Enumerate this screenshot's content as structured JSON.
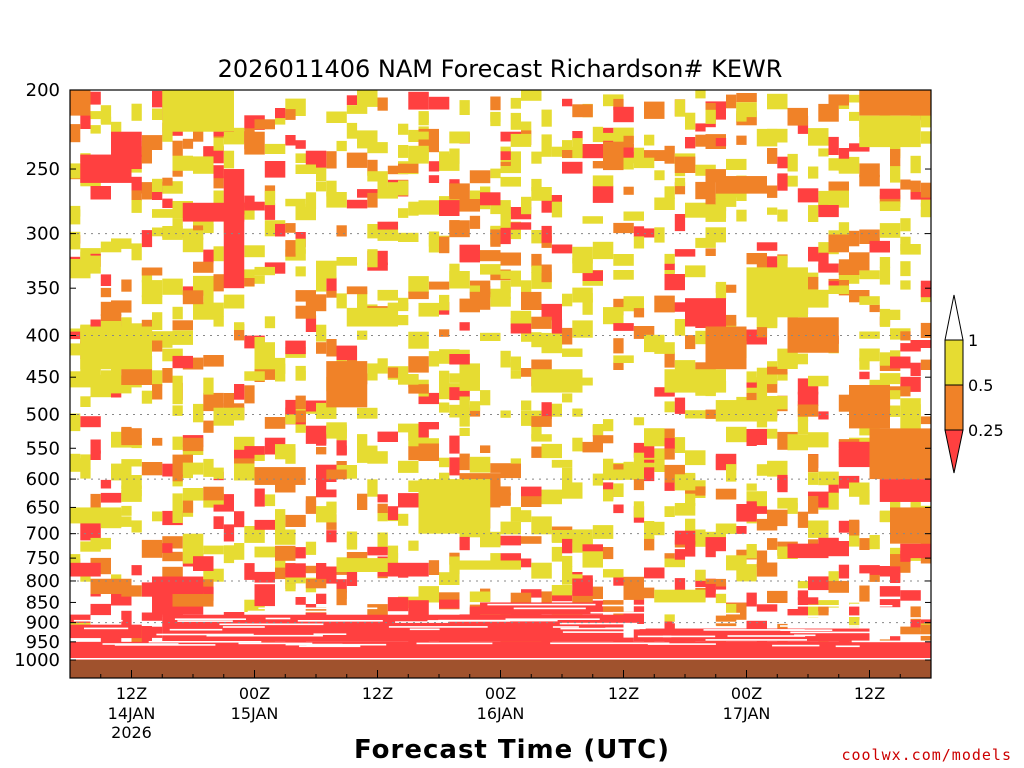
{
  "chart_data": {
    "type": "heatmap",
    "title": "2026011406 NAM Forecast Richardson# KEWR",
    "xlabel": "Forecast Time (UTC)",
    "ylabel": "",
    "credit": "coolwx.com/models",
    "y_axis": {
      "scale": "log-pressure",
      "unit": "hPa",
      "range": [
        1000,
        200
      ],
      "ticks": [
        "200",
        "250",
        "300",
        "350",
        "400",
        "450",
        "500",
        "550",
        "600",
        "650",
        "700",
        "750",
        "800",
        "850",
        "900",
        "950",
        "1000"
      ],
      "dotted_gridlines": [
        300,
        400,
        500,
        600,
        700,
        800,
        900
      ]
    },
    "x_axis": {
      "range_hours": [
        0,
        84
      ],
      "ticks": [
        {
          "hour": 6,
          "label": "12Z",
          "date": "14JAN",
          "year": "2026"
        },
        {
          "hour": 18,
          "label": "00Z",
          "date": "15JAN",
          "year": ""
        },
        {
          "hour": 30,
          "label": "12Z",
          "date": "",
          "year": ""
        },
        {
          "hour": 42,
          "label": "00Z",
          "date": "16JAN",
          "year": ""
        },
        {
          "hour": 54,
          "label": "12Z",
          "date": "",
          "year": ""
        },
        {
          "hour": 66,
          "label": "00Z",
          "date": "17JAN",
          "year": ""
        },
        {
          "hour": 78,
          "label": "12Z",
          "date": "",
          "year": ""
        }
      ]
    },
    "legend": {
      "placement": "right",
      "classes": [
        {
          "range": "< 0.25",
          "color": "#ff4040"
        },
        {
          "range": "0.25 - 0.5",
          "color": "#f08228"
        },
        {
          "range": "0.5 - 1",
          "color": "#e6dc32"
        },
        {
          "range": "> 1",
          "color": "#ffffff"
        }
      ],
      "labels": [
        "1",
        "0.5",
        "0.25"
      ]
    },
    "below_ground_color": "#a0522d",
    "regions": [
      {
        "class": "lt_0.25",
        "h0": 0,
        "h1": 84,
        "p0": 1000,
        "p1": 950
      },
      {
        "class": "lt_0.25",
        "h0": 9,
        "h1": 54,
        "p0": 950,
        "p1": 880
      },
      {
        "class": "lt_0.25",
        "h0": 40,
        "h1": 52,
        "p0": 880,
        "p1": 850
      },
      {
        "class": "lt_0.25",
        "h0": 55,
        "h1": 78,
        "p0": 950,
        "p1": 915
      },
      {
        "class": "lt_0.25",
        "h0": 8,
        "h1": 13,
        "p0": 880,
        "p1": 790
      },
      {
        "class": "lt_0.25",
        "h0": 0,
        "h1": 7,
        "p0": 940,
        "p1": 905
      },
      {
        "class": "lt_0.25",
        "h0": 30,
        "h1": 35,
        "p0": 790,
        "p1": 760
      },
      {
        "class": "lt_0.25",
        "h0": 1,
        "h1": 6,
        "p0": 240,
        "p1": 260
      },
      {
        "class": "lt_0.25",
        "h0": 4,
        "h1": 7,
        "p0": 225,
        "p1": 250
      },
      {
        "class": "lt_0.25",
        "h0": 11,
        "h1": 17,
        "p0": 275,
        "p1": 290
      },
      {
        "class": "lt_0.25",
        "h0": 15,
        "h1": 17,
        "p0": 250,
        "p1": 350
      },
      {
        "class": "lt_0.25",
        "h0": 60,
        "h1": 64,
        "p0": 360,
        "p1": 390
      },
      {
        "class": "lt_0.25",
        "h0": 70,
        "h1": 74,
        "p0": 720,
        "p1": 750
      },
      {
        "class": "lt_0.25",
        "h0": 75,
        "h1": 79,
        "p0": 540,
        "p1": 580
      },
      {
        "class": "lt_0.25",
        "h0": 79,
        "h1": 84,
        "p0": 600,
        "p1": 640
      },
      {
        "class": "lt_0.25",
        "h0": 81,
        "h1": 84,
        "p0": 720,
        "p1": 750
      },
      {
        "class": "lt_0.25",
        "h0": 0,
        "h1": 3,
        "p0": 790,
        "p1": 760
      },
      {
        "class": "r_0.25_0.5",
        "h0": 2,
        "h1": 6,
        "p0": 795,
        "p1": 830
      },
      {
        "class": "r_0.25_0.5",
        "h0": 10,
        "h1": 14,
        "p0": 830,
        "p1": 860
      },
      {
        "class": "r_0.25_0.5",
        "h0": 5,
        "h1": 8,
        "p0": 400,
        "p1": 460
      },
      {
        "class": "r_0.25_0.5",
        "h0": 25,
        "h1": 29,
        "p0": 430,
        "p1": 490
      },
      {
        "class": "r_0.25_0.5",
        "h0": 35,
        "h1": 41,
        "p0": 620,
        "p1": 690
      },
      {
        "class": "r_0.25_0.5",
        "h0": 38,
        "h1": 42,
        "p0": 590,
        "p1": 650
      },
      {
        "class": "r_0.25_0.5",
        "h0": 62,
        "h1": 66,
        "p0": 390,
        "p1": 440
      },
      {
        "class": "r_0.25_0.5",
        "h0": 70,
        "h1": 75,
        "p0": 380,
        "p1": 420
      },
      {
        "class": "r_0.25_0.5",
        "h0": 76,
        "h1": 80,
        "p0": 460,
        "p1": 520
      },
      {
        "class": "r_0.25_0.5",
        "h0": 78,
        "h1": 84,
        "p0": 520,
        "p1": 600
      },
      {
        "class": "r_0.25_0.5",
        "h0": 80,
        "h1": 84,
        "p0": 650,
        "p1": 720
      },
      {
        "class": "r_0.25_0.5",
        "h0": 77,
        "h1": 84,
        "p0": 200,
        "p1": 215
      },
      {
        "class": "r_0.25_0.5",
        "h0": 0,
        "h1": 2,
        "p0": 200,
        "p1": 215
      },
      {
        "class": "r_0.25_0.5",
        "h0": 63,
        "h1": 68,
        "p0": 255,
        "p1": 268
      },
      {
        "class": "r_0.25_0.5",
        "h0": 17,
        "h1": 19,
        "p0": 225,
        "p1": 240
      },
      {
        "class": "r_0.25_0.5",
        "h0": 18,
        "h1": 23,
        "p0": 580,
        "p1": 610
      },
      {
        "class": "0.5_1",
        "h0": 1,
        "h1": 8,
        "p0": 390,
        "p1": 440
      },
      {
        "class": "0.5_1",
        "h0": 9,
        "h1": 16,
        "p0": 200,
        "p1": 225
      },
      {
        "class": "0.5_1",
        "h0": 27,
        "h1": 32,
        "p0": 370,
        "p1": 390
      },
      {
        "class": "0.5_1",
        "h0": 34,
        "h1": 41,
        "p0": 600,
        "p1": 700
      },
      {
        "class": "0.5_1",
        "h0": 58,
        "h1": 64,
        "p0": 440,
        "p1": 470
      },
      {
        "class": "0.5_1",
        "h0": 66,
        "h1": 72,
        "p0": 330,
        "p1": 380
      },
      {
        "class": "0.5_1",
        "h0": 45,
        "h1": 50,
        "p0": 440,
        "p1": 470
      },
      {
        "class": "0.5_1",
        "h0": 26,
        "h1": 31,
        "p0": 750,
        "p1": 780
      },
      {
        "class": "0.5_1",
        "h0": 38,
        "h1": 44,
        "p0": 755,
        "p1": 775
      },
      {
        "class": "0.5_1",
        "h0": 0,
        "h1": 5,
        "p0": 650,
        "p1": 680
      },
      {
        "class": "0.5_1",
        "h0": 77,
        "h1": 83,
        "p0": 215,
        "p1": 235
      },
      {
        "class": "0.5_1",
        "h0": 57,
        "h1": 62,
        "p0": 820,
        "p1": 850
      },
      {
        "class": "0.5_1",
        "h0": 63,
        "h1": 69,
        "p0": 480,
        "p1": 510
      }
    ],
    "scatter_cells": {
      "seed": 4217,
      "cell_hours": 1,
      "cell_fraction_of_log_span": 0.016,
      "count": 1400,
      "levels": [
        {
          "p0": 200,
          "p1": 520,
          "density": "high"
        },
        {
          "p0": 520,
          "p1": 760,
          "density": "medium"
        },
        {
          "p0": 760,
          "p1": 950,
          "density": "high"
        }
      ]
    }
  }
}
